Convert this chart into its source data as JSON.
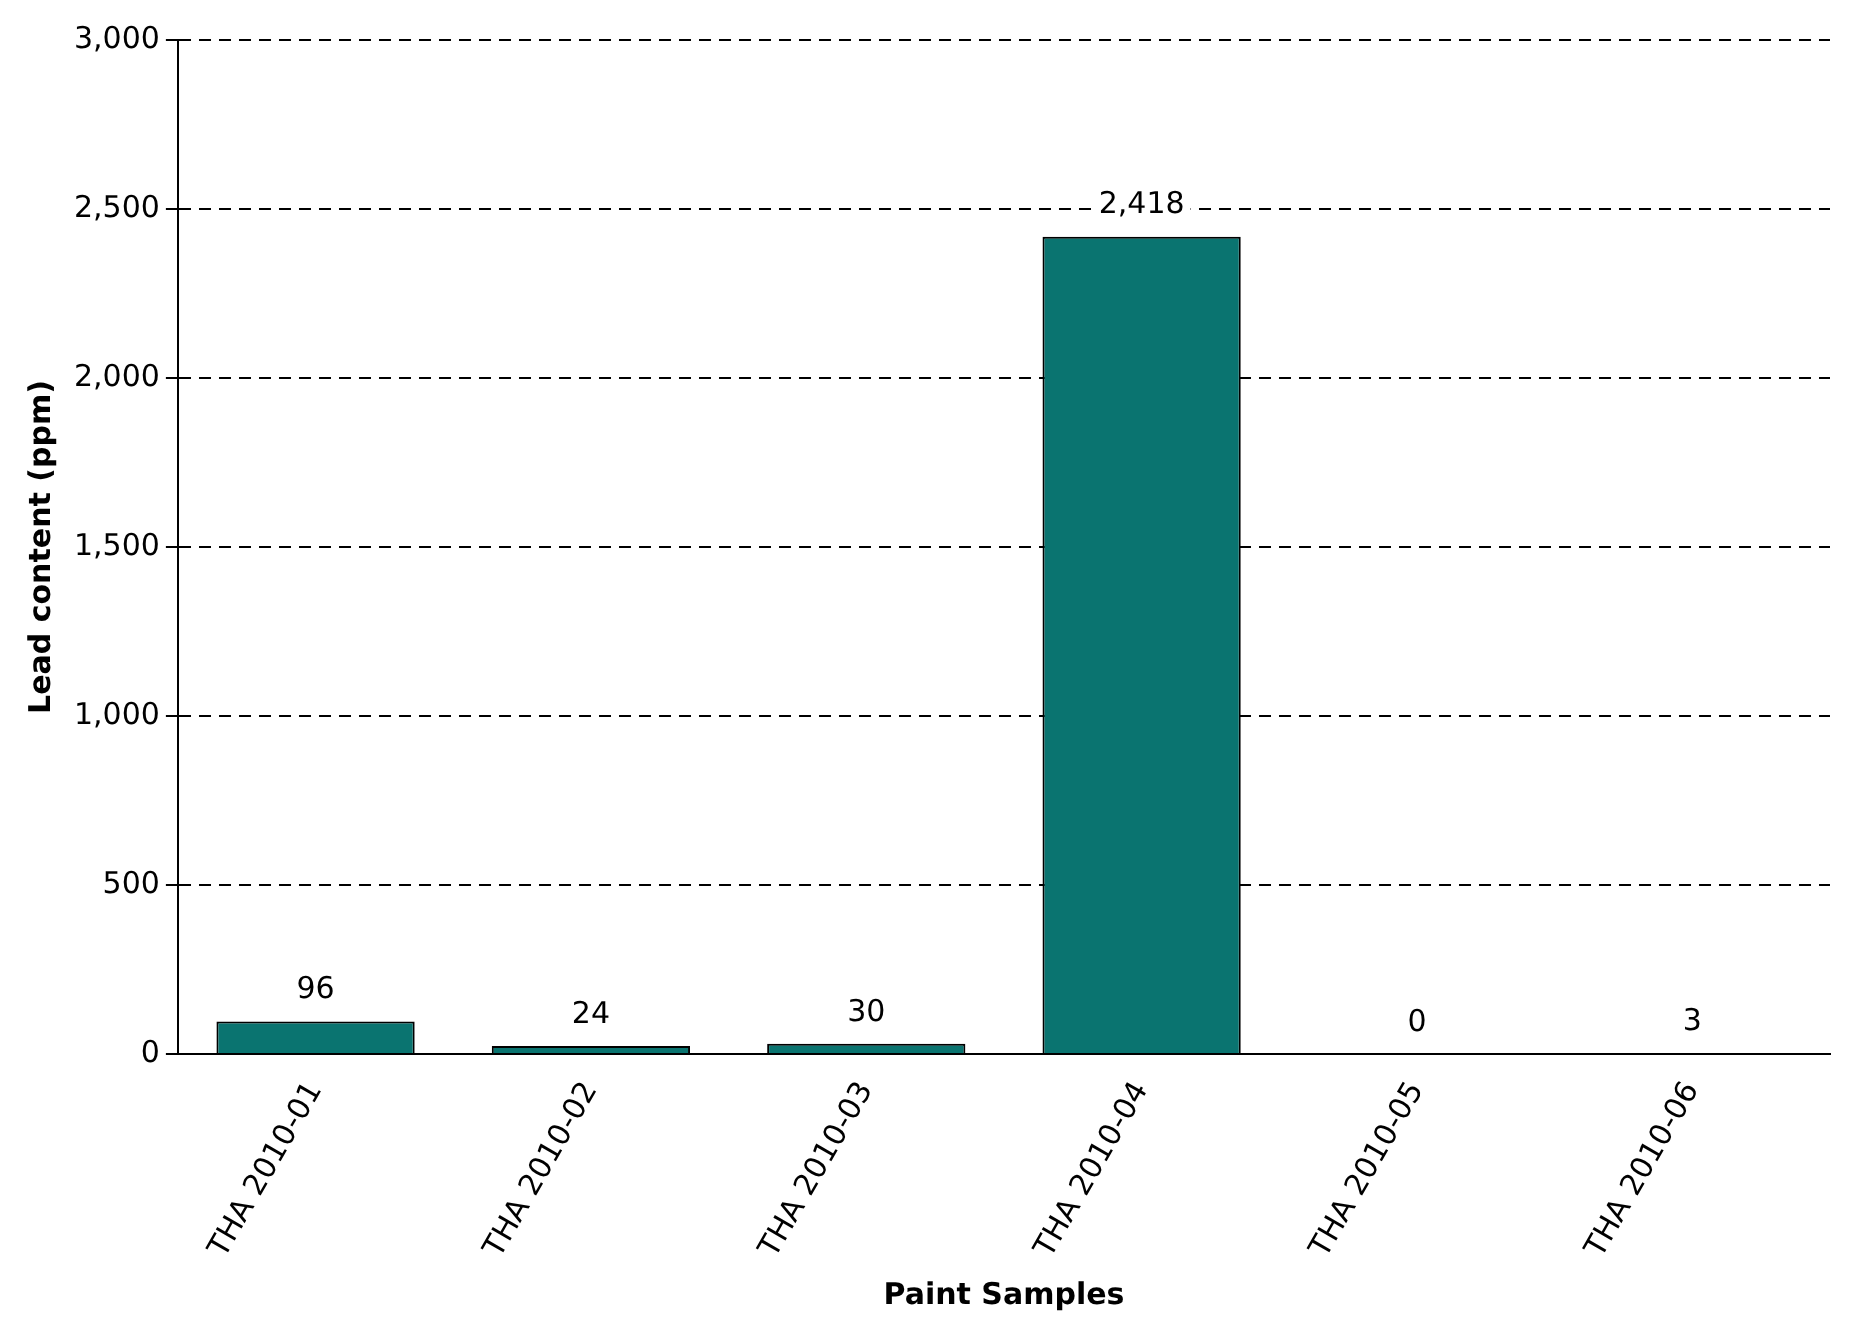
{
  "chart_data": {
    "type": "bar",
    "xlabel": "Paint Samples",
    "ylabel": "Lead content (ppm)",
    "categories": [
      "THA 2010-01",
      "THA 2010-02",
      "THA 2010-03",
      "THA 2010-04",
      "THA 2010-05",
      "THA 2010-06"
    ],
    "values": [
      96,
      24,
      30,
      2418,
      0,
      3
    ],
    "value_labels": [
      "96",
      "24",
      "30",
      "2,418",
      "0",
      "3"
    ],
    "color": "#0a7470",
    "ylim": [
      0,
      3000
    ],
    "yticks": [
      {
        "value": 0,
        "label": "0"
      },
      {
        "value": 500,
        "label": "500"
      },
      {
        "value": 1000,
        "label": "1,000"
      },
      {
        "value": 1500,
        "label": "1,500"
      },
      {
        "value": 2000,
        "label": "2,000"
      },
      {
        "value": 2500,
        "label": "2,500"
      },
      {
        "value": 3000,
        "label": "3,000"
      }
    ],
    "grid": "y",
    "legend": false
  }
}
